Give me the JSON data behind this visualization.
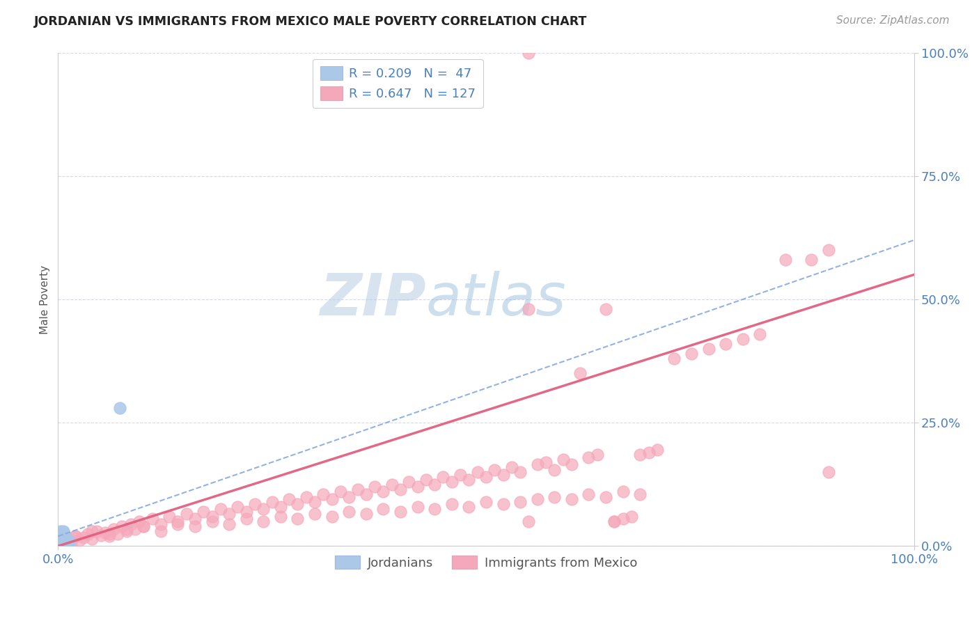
{
  "title": "JORDANIAN VS IMMIGRANTS FROM MEXICO MALE POVERTY CORRELATION CHART",
  "source_text": "Source: ZipAtlas.com",
  "ylabel": "Male Poverty",
  "xlim": [
    0,
    1
  ],
  "ylim": [
    0,
    1
  ],
  "ytick_values": [
    0.0,
    0.25,
    0.5,
    0.75,
    1.0
  ],
  "ytick_labels": [
    "0.0%",
    "25.0%",
    "50.0%",
    "75.0%",
    "100.0%"
  ],
  "xtick_values": [
    0.0,
    1.0
  ],
  "xtick_labels": [
    "0.0%",
    "100.0%"
  ],
  "legend_line1": "R = 0.209   N =  47",
  "legend_line2": "R = 0.647   N = 127",
  "color_jordan": "#aac8e8",
  "color_mexico": "#f5a8ba",
  "color_jordan_line": "#88aadd",
  "color_mexico_line": "#e06080",
  "color_text_blue": "#4a80c0",
  "watermark_text": "ZIPAtlas",
  "watermark_color": "#d0dff0",
  "grid_color": "#d8d8e8",
  "jordan_x": [
    0.005,
    0.008,
    0.003,
    0.01,
    0.007,
    0.012,
    0.004,
    0.009,
    0.006,
    0.011,
    0.002,
    0.008,
    0.013,
    0.005,
    0.01,
    0.007,
    0.003,
    0.009,
    0.006,
    0.004,
    0.011,
    0.008,
    0.005,
    0.012,
    0.007,
    0.003,
    0.009,
    0.006,
    0.01,
    0.004,
    0.008,
    0.013,
    0.005,
    0.007,
    0.009,
    0.003,
    0.011,
    0.006,
    0.072,
    0.008,
    0.004,
    0.01,
    0.007,
    0.005,
    0.009,
    0.003,
    0.006
  ],
  "jordan_y": [
    0.015,
    0.01,
    0.025,
    0.008,
    0.018,
    0.005,
    0.022,
    0.012,
    0.03,
    0.007,
    0.02,
    0.015,
    0.01,
    0.025,
    0.008,
    0.018,
    0.03,
    0.012,
    0.022,
    0.016,
    0.009,
    0.02,
    0.014,
    0.006,
    0.024,
    0.018,
    0.011,
    0.027,
    0.007,
    0.021,
    0.013,
    0.005,
    0.023,
    0.017,
    0.009,
    0.028,
    0.011,
    0.019,
    0.28,
    0.015,
    0.022,
    0.008,
    0.016,
    0.024,
    0.01,
    0.02,
    0.014
  ],
  "mexico_x": [
    0.005,
    0.01,
    0.015,
    0.02,
    0.025,
    0.03,
    0.035,
    0.04,
    0.045,
    0.05,
    0.055,
    0.06,
    0.065,
    0.07,
    0.075,
    0.08,
    0.085,
    0.09,
    0.095,
    0.1,
    0.11,
    0.12,
    0.13,
    0.14,
    0.15,
    0.16,
    0.17,
    0.18,
    0.19,
    0.2,
    0.21,
    0.22,
    0.23,
    0.24,
    0.25,
    0.26,
    0.27,
    0.28,
    0.29,
    0.3,
    0.31,
    0.32,
    0.33,
    0.34,
    0.35,
    0.36,
    0.37,
    0.38,
    0.39,
    0.4,
    0.41,
    0.42,
    0.43,
    0.44,
    0.45,
    0.46,
    0.47,
    0.48,
    0.49,
    0.5,
    0.51,
    0.52,
    0.53,
    0.54,
    0.55,
    0.56,
    0.57,
    0.58,
    0.59,
    0.6,
    0.61,
    0.62,
    0.63,
    0.64,
    0.65,
    0.66,
    0.67,
    0.68,
    0.69,
    0.7,
    0.72,
    0.74,
    0.76,
    0.78,
    0.8,
    0.82,
    0.85,
    0.88,
    0.9,
    0.55,
    0.02,
    0.04,
    0.06,
    0.08,
    0.1,
    0.12,
    0.14,
    0.16,
    0.18,
    0.2,
    0.22,
    0.24,
    0.26,
    0.28,
    0.3,
    0.32,
    0.34,
    0.36,
    0.38,
    0.4,
    0.42,
    0.44,
    0.46,
    0.48,
    0.5,
    0.52,
    0.54,
    0.56,
    0.58,
    0.6,
    0.62,
    0.64,
    0.66,
    0.68,
    0.55,
    0.65,
    0.9
  ],
  "mexico_y": [
    0.01,
    0.015,
    0.008,
    0.02,
    0.012,
    0.018,
    0.025,
    0.015,
    0.03,
    0.022,
    0.028,
    0.02,
    0.035,
    0.025,
    0.04,
    0.03,
    0.045,
    0.035,
    0.05,
    0.04,
    0.055,
    0.045,
    0.06,
    0.05,
    0.065,
    0.055,
    0.07,
    0.06,
    0.075,
    0.065,
    0.08,
    0.07,
    0.085,
    0.075,
    0.09,
    0.08,
    0.095,
    0.085,
    0.1,
    0.09,
    0.105,
    0.095,
    0.11,
    0.1,
    0.115,
    0.105,
    0.12,
    0.11,
    0.125,
    0.115,
    0.13,
    0.12,
    0.135,
    0.125,
    0.14,
    0.13,
    0.145,
    0.135,
    0.15,
    0.14,
    0.155,
    0.145,
    0.16,
    0.15,
    0.48,
    0.165,
    0.17,
    0.155,
    0.175,
    0.165,
    0.35,
    0.18,
    0.185,
    0.48,
    0.05,
    0.055,
    0.06,
    0.185,
    0.19,
    0.195,
    0.38,
    0.39,
    0.4,
    0.41,
    0.42,
    0.43,
    0.58,
    0.58,
    0.6,
    1.0,
    0.02,
    0.03,
    0.025,
    0.035,
    0.04,
    0.03,
    0.045,
    0.04,
    0.05,
    0.045,
    0.055,
    0.05,
    0.06,
    0.055,
    0.065,
    0.06,
    0.07,
    0.065,
    0.075,
    0.07,
    0.08,
    0.075,
    0.085,
    0.08,
    0.09,
    0.085,
    0.09,
    0.095,
    0.1,
    0.095,
    0.105,
    0.1,
    0.11,
    0.105,
    0.05,
    0.05,
    0.15
  ],
  "jordan_line_x": [
    0.0,
    1.0
  ],
  "jordan_line_y": [
    0.02,
    0.62
  ],
  "mexico_line_x": [
    0.0,
    1.0
  ],
  "mexico_line_y": [
    0.0,
    0.55
  ]
}
